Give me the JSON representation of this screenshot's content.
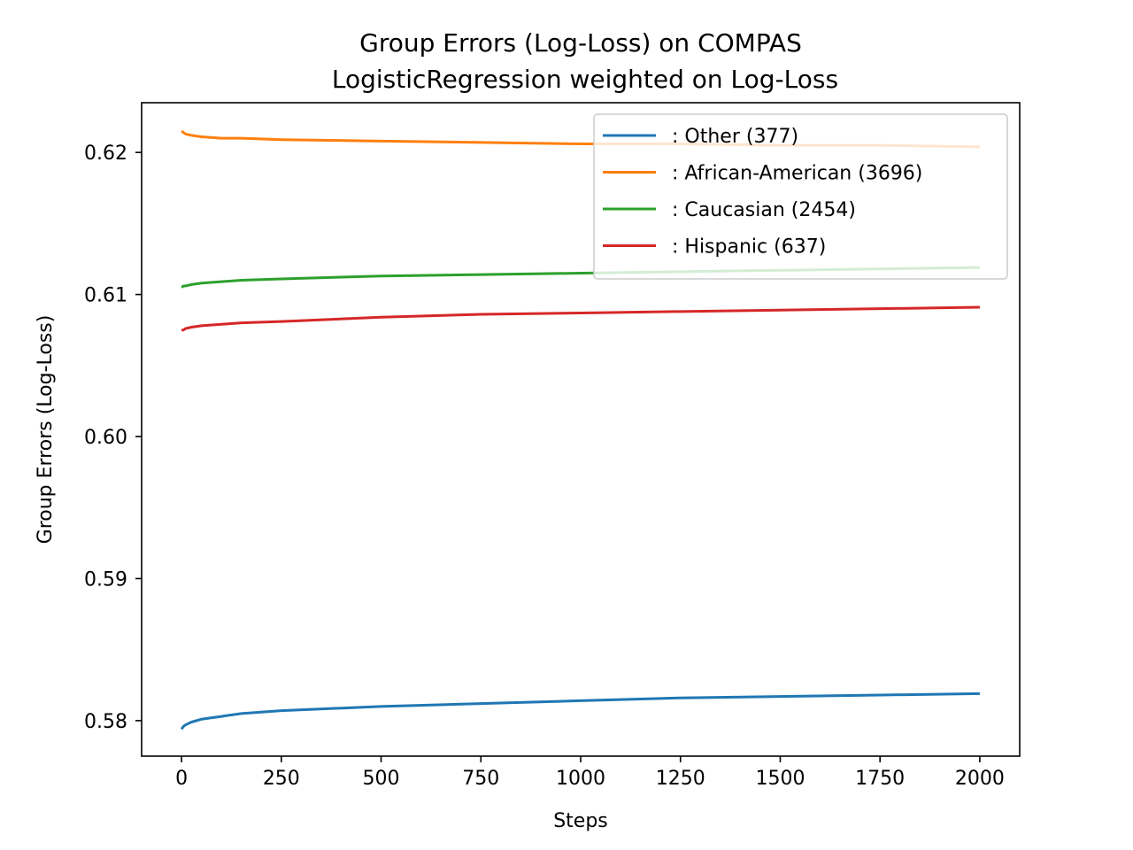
{
  "chart_data": {
    "type": "line",
    "title": "Group Errors (Log-Loss) on COMPAS",
    "subtitle": "LogisticRegression weighted on Log-Loss",
    "xlabel": "Steps",
    "ylabel": "Group Errors (Log-Loss)",
    "xlim": [
      -100,
      2100
    ],
    "ylim": [
      0.5775,
      0.6235
    ],
    "xticks": [
      0,
      250,
      500,
      750,
      1000,
      1250,
      1500,
      1750,
      2000
    ],
    "xtick_labels": [
      "0",
      "250",
      "500",
      "750",
      "1000",
      "1250",
      "1500",
      "1750",
      "2000"
    ],
    "yticks": [
      0.58,
      0.59,
      0.6,
      0.61,
      0.62
    ],
    "ytick_labels": [
      "0.58",
      "0.59",
      "0.60",
      "0.61",
      "0.62"
    ],
    "grid": false,
    "legend_position": "top-right",
    "x": [
      0,
      5,
      10,
      25,
      50,
      100,
      150,
      250,
      500,
      750,
      1000,
      1250,
      1500,
      1750,
      2000
    ],
    "series": [
      {
        "name": ": Other  (377)",
        "color": "#1f77b4",
        "values": [
          0.5794,
          0.5796,
          0.5797,
          0.5799,
          0.5801,
          0.5803,
          0.5805,
          0.5807,
          0.581,
          0.5812,
          0.5814,
          0.5816,
          0.5817,
          0.5818,
          0.5819
        ]
      },
      {
        "name": ": African-American  (3696)",
        "color": "#ff7f0e",
        "values": [
          0.6215,
          0.6214,
          0.6213,
          0.6212,
          0.6211,
          0.621,
          0.621,
          0.6209,
          0.6208,
          0.6207,
          0.6206,
          0.6206,
          0.6205,
          0.6205,
          0.6204
        ]
      },
      {
        "name": ": Caucasian  (2454)",
        "color": "#2ca02c",
        "values": [
          0.6105,
          0.6106,
          0.6106,
          0.6107,
          0.6108,
          0.6109,
          0.611,
          0.6111,
          0.6113,
          0.6114,
          0.6115,
          0.6116,
          0.6117,
          0.6118,
          0.6119
        ]
      },
      {
        "name": ": Hispanic  (637)",
        "color": "#d62728",
        "values": [
          0.6075,
          0.6075,
          0.6076,
          0.6077,
          0.6078,
          0.6079,
          0.608,
          0.6081,
          0.6084,
          0.6086,
          0.6087,
          0.6088,
          0.6089,
          0.609,
          0.6091
        ]
      }
    ]
  }
}
